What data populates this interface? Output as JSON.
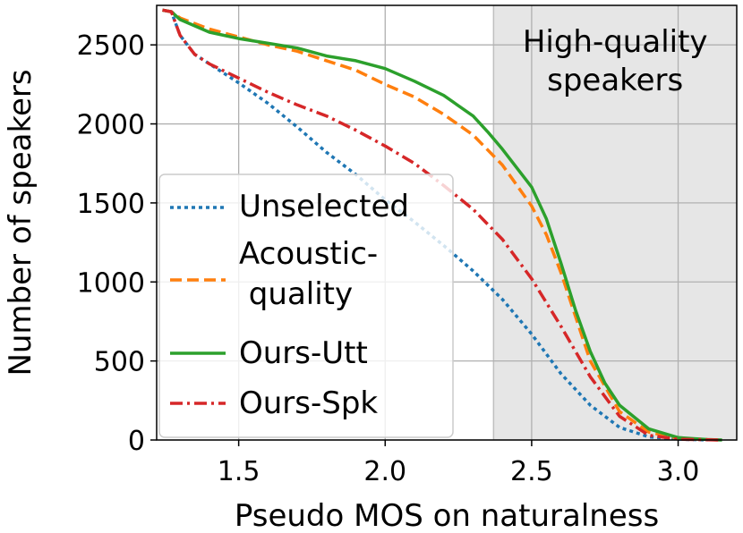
{
  "chart_data": {
    "type": "line",
    "xlabel": "Pseudo MOS on naturalness",
    "ylabel": "Number of speakers",
    "xlim": [
      1.22,
      3.2
    ],
    "ylim": [
      0,
      2750
    ],
    "xticks": [
      1.5,
      2.0,
      2.5,
      3.0
    ],
    "xtick_labels": [
      "1.5",
      "2.0",
      "2.5",
      "3.0"
    ],
    "yticks": [
      0,
      500,
      1000,
      1500,
      2000,
      2500
    ],
    "ytick_labels": [
      "0",
      "500",
      "1000",
      "1500",
      "2000",
      "2500"
    ],
    "grid": true,
    "legend_position": "lower-left",
    "highlight_region": {
      "x_start": 2.37,
      "label_lines": [
        "High-quality",
        "speakers"
      ],
      "color": "#e6e6e6"
    },
    "series": [
      {
        "name": "Unselected",
        "color": "#1f77b4",
        "style": "dotted",
        "x": [
          1.24,
          1.27,
          1.3,
          1.35,
          1.4,
          1.5,
          1.6,
          1.7,
          1.8,
          1.9,
          2.0,
          2.1,
          2.2,
          2.3,
          2.4,
          2.5,
          2.6,
          2.7,
          2.8,
          2.9,
          3.0,
          3.1
        ],
        "y": [
          2720,
          2710,
          2560,
          2440,
          2380,
          2260,
          2130,
          1980,
          1820,
          1680,
          1520,
          1380,
          1230,
          1070,
          890,
          670,
          420,
          220,
          80,
          20,
          5,
          0
        ]
      },
      {
        "name": "Acoustic-\n quality",
        "legend_lines": [
          "Acoustic-",
          " quality"
        ],
        "color": "#ff7f0e",
        "style": "dashed",
        "x": [
          1.24,
          1.27,
          1.3,
          1.4,
          1.5,
          1.6,
          1.7,
          1.8,
          1.9,
          2.0,
          2.1,
          2.2,
          2.3,
          2.4,
          2.5,
          2.55,
          2.6,
          2.65,
          2.7,
          2.8,
          2.9,
          3.0,
          3.1,
          3.15
        ],
        "y": [
          2720,
          2710,
          2670,
          2600,
          2550,
          2500,
          2460,
          2400,
          2340,
          2250,
          2170,
          2060,
          1930,
          1740,
          1480,
          1300,
          1060,
          780,
          500,
          180,
          50,
          10,
          2,
          0
        ]
      },
      {
        "name": "Ours-Utt",
        "color": "#2ca02c",
        "style": "solid",
        "x": [
          1.24,
          1.27,
          1.3,
          1.4,
          1.5,
          1.6,
          1.7,
          1.8,
          1.9,
          2.0,
          2.1,
          2.2,
          2.3,
          2.35,
          2.4,
          2.5,
          2.55,
          2.6,
          2.65,
          2.7,
          2.75,
          2.8,
          2.9,
          3.0,
          3.1,
          3.15
        ],
        "y": [
          2720,
          2710,
          2660,
          2580,
          2540,
          2510,
          2480,
          2430,
          2400,
          2350,
          2270,
          2180,
          2050,
          1950,
          1840,
          1600,
          1400,
          1120,
          820,
          560,
          360,
          220,
          70,
          15,
          3,
          0
        ]
      },
      {
        "name": "Ours-Spk",
        "color": "#d62728",
        "style": "dashdot",
        "x": [
          1.24,
          1.27,
          1.3,
          1.35,
          1.4,
          1.5,
          1.6,
          1.7,
          1.8,
          1.9,
          2.0,
          2.1,
          2.2,
          2.3,
          2.4,
          2.5,
          2.6,
          2.7,
          2.8,
          2.9,
          3.0,
          3.1,
          3.15
        ],
        "y": [
          2720,
          2710,
          2560,
          2440,
          2380,
          2290,
          2200,
          2120,
          2050,
          1960,
          1860,
          1750,
          1610,
          1460,
          1270,
          1020,
          720,
          400,
          150,
          30,
          5,
          1,
          0
        ]
      }
    ]
  }
}
